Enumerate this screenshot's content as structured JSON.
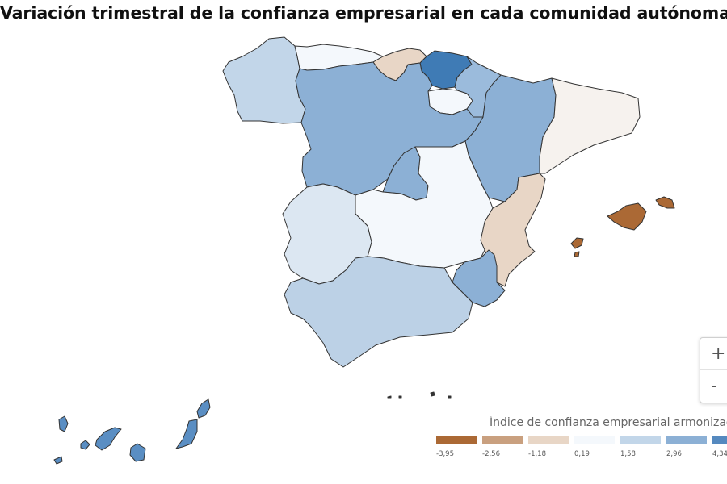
{
  "title": "Variación trimestral de la confianza empresarial en cada comunidad autónoma",
  "colors": {
    "c1": "#ab6935",
    "c2": "#c9a07f",
    "c3": "#e8d6c6",
    "c4": "#f4f8fc",
    "c5": "#c2d6e9",
    "c6": "#8cb0d5",
    "c7": "#5589bf",
    "outline": "#333333"
  },
  "map": {
    "regions": [
      {
        "name": "Galicia",
        "color": "#bcd1e6"
      },
      {
        "name": "Asturias",
        "color": "#f4f8fc"
      },
      {
        "name": "Cantabria",
        "color": "#e8d6c6"
      },
      {
        "name": "País Vasco",
        "color": "#3f7bb5"
      },
      {
        "name": "Navarra",
        "color": "#9bbbdc"
      },
      {
        "name": "La Rioja",
        "color": "#f4f8fc"
      },
      {
        "name": "Aragón",
        "color": "#8cb0d5"
      },
      {
        "name": "Cataluña",
        "color": "#f6f2ee"
      },
      {
        "name": "Castilla y León",
        "color": "#8cb0d5"
      },
      {
        "name": "Madrid",
        "color": "#8cb0d5"
      },
      {
        "name": "Castilla-La Mancha",
        "color": "#f4f8fc"
      },
      {
        "name": "Extremadura",
        "color": "#dce7f2"
      },
      {
        "name": "Comunitat Valenciana",
        "color": "#e8d6c6"
      },
      {
        "name": "Región de Murcia",
        "color": "#8cb0d5"
      },
      {
        "name": "Andalucía",
        "color": "#bcd1e6"
      },
      {
        "name": "Illes Balears",
        "color": "#ab6935"
      },
      {
        "name": "Canarias",
        "color": "#5a8ec3"
      },
      {
        "name": "Ceuta",
        "color": "#333333"
      },
      {
        "name": "Melilla",
        "color": "#333333"
      }
    ]
  },
  "zoom": {
    "in_label": "+",
    "out_label": "-"
  },
  "legend": {
    "title": "Índice de confianza empresarial armonizado",
    "ticks": [
      "-3,95",
      "-2,56",
      "-1,18",
      "0,19",
      "1,58",
      "2,96",
      "4,34"
    ]
  }
}
